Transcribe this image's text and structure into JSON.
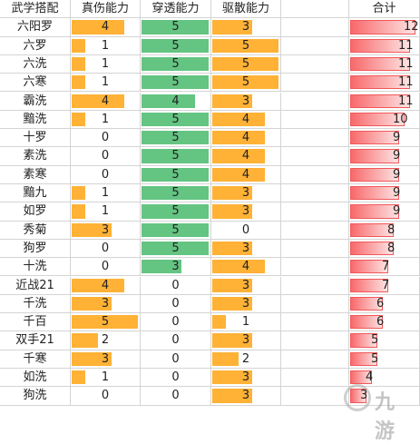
{
  "headers": [
    "武学搭配",
    "真伤能力",
    "穿透能力",
    "驱散能力",
    "",
    "合计"
  ],
  "max": {
    "truedmg": 5,
    "pen": 5,
    "dispel": 5,
    "total": 12
  },
  "rows": [
    {
      "name": "六阳罗",
      "truedmg": 4,
      "pen": 5,
      "dispel": 3,
      "total": 12
    },
    {
      "name": "六罗",
      "truedmg": 1,
      "pen": 5,
      "dispel": 5,
      "total": 11
    },
    {
      "name": "六洗",
      "truedmg": 1,
      "pen": 5,
      "dispel": 5,
      "total": 11
    },
    {
      "name": "六寒",
      "truedmg": 1,
      "pen": 5,
      "dispel": 5,
      "total": 11
    },
    {
      "name": "霸洗",
      "truedmg": 4,
      "pen": 4,
      "dispel": 3,
      "total": 11
    },
    {
      "name": "黯洗",
      "truedmg": 1,
      "pen": 5,
      "dispel": 4,
      "total": 10
    },
    {
      "name": "十罗",
      "truedmg": 0,
      "pen": 5,
      "dispel": 4,
      "total": 9
    },
    {
      "name": "素洗",
      "truedmg": 0,
      "pen": 5,
      "dispel": 4,
      "total": 9
    },
    {
      "name": "素寒",
      "truedmg": 0,
      "pen": 5,
      "dispel": 4,
      "total": 9
    },
    {
      "name": "黯九",
      "truedmg": 1,
      "pen": 5,
      "dispel": 3,
      "total": 9
    },
    {
      "name": "如罗",
      "truedmg": 1,
      "pen": 5,
      "dispel": 3,
      "total": 9
    },
    {
      "name": "秀菊",
      "truedmg": 3,
      "pen": 5,
      "dispel": 0,
      "total": 8
    },
    {
      "name": "狗罗",
      "truedmg": 0,
      "pen": 5,
      "dispel": 3,
      "total": 8
    },
    {
      "name": "十洗",
      "truedmg": 0,
      "pen": 3,
      "dispel": 4,
      "total": 7
    },
    {
      "name": "近战21",
      "truedmg": 4,
      "pen": 0,
      "dispel": 3,
      "total": 7
    },
    {
      "name": "千洗",
      "truedmg": 3,
      "pen": 0,
      "dispel": 3,
      "total": 6
    },
    {
      "name": "千百",
      "truedmg": 5,
      "pen": 0,
      "dispel": 1,
      "total": 6
    },
    {
      "name": "双手21",
      "truedmg": 2,
      "pen": 0,
      "dispel": 3,
      "total": 5
    },
    {
      "name": "千寒",
      "truedmg": 3,
      "pen": 0,
      "dispel": 2,
      "total": 5
    },
    {
      "name": "如洗",
      "truedmg": 1,
      "pen": 0,
      "dispel": 3,
      "total": 4
    },
    {
      "name": "狗洗",
      "truedmg": 0,
      "pen": 0,
      "dispel": 3,
      "total": 3
    }
  ],
  "colors": {
    "truedmg": "#ffb236",
    "pen": "#64c482",
    "dispel": "#ffb236",
    "total": "#f8696b"
  },
  "watermark": {
    "text": "九游",
    "icon": "jiuyou-logo-icon"
  }
}
